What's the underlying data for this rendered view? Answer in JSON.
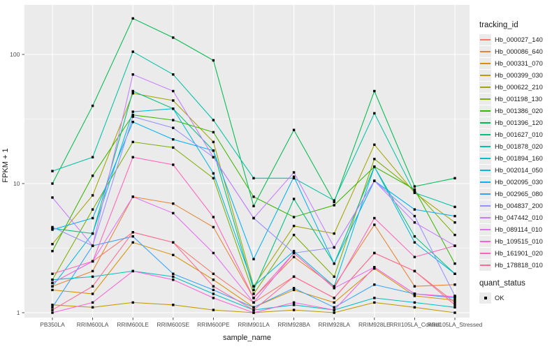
{
  "figure_bg": "#ffffff",
  "panel_bg": "#ebebeb",
  "grid_color": "#ffffff",
  "tick_color": "#333333",
  "axis_text_color": "#4d4d4d",
  "point_color": "#000000",
  "legend": {
    "tracking_title": "tracking_id",
    "quant_title": "quant_status",
    "quant_item": "OK",
    "key_bg": "#ebebeb"
  },
  "chart_data": {
    "type": "line",
    "xlabel": "sample_name",
    "ylabel": "FPKM + 1",
    "yscale": "log10",
    "ylim": [
      1,
      230
    ],
    "yticks": [
      1,
      10,
      100
    ],
    "grid": true,
    "legend_position": "right",
    "point_shape": "filled-square",
    "categories": [
      "PB350LA",
      "RRIM600LA",
      "RRIM600LE",
      "RRIM600SE",
      "RRIM600PE",
      "RRIM901LA",
      "RRIM928BA",
      "RRIM928LA",
      "RRIM928LE",
      "RRII105LA_Control",
      "RRII105LA_Stressed"
    ],
    "series": [
      {
        "name": "Hb_000027_140",
        "color": "#F8766D",
        "values": [
          1.7,
          2.5,
          4.2,
          3.5,
          2.0,
          1.2,
          1.9,
          1.3,
          2.9,
          2.1,
          1.2
        ]
      },
      {
        "name": "Hb_000086_640",
        "color": "#EA8331",
        "values": [
          1.6,
          2.1,
          7.9,
          7.0,
          4.6,
          1.3,
          2.7,
          1.6,
          4.8,
          1.6,
          1.65
        ]
      },
      {
        "name": "Hb_000331_070",
        "color": "#D89000",
        "values": [
          1.5,
          1.4,
          3.5,
          2.8,
          1.8,
          1.1,
          1.5,
          1.2,
          2.2,
          1.35,
          1.25
        ]
      },
      {
        "name": "Hb_000399_030",
        "color": "#C09B00",
        "values": [
          1.15,
          1.1,
          1.2,
          1.15,
          1.05,
          1.0,
          1.05,
          1.0,
          1.2,
          1.1,
          1.0
        ]
      },
      {
        "name": "Hb_000622_210",
        "color": "#A3A500",
        "values": [
          3.4,
          8.1,
          50,
          44,
          21,
          1.6,
          4.7,
          4.1,
          20,
          8.5,
          5.0
        ]
      },
      {
        "name": "Hb_001198_130",
        "color": "#7CAE00",
        "values": [
          1.8,
          6.3,
          21,
          19,
          11,
          1.4,
          4.0,
          1.9,
          15.5,
          8.8,
          4.0
        ]
      },
      {
        "name": "Hb_001386_020",
        "color": "#39B600",
        "values": [
          3.0,
          11.5,
          34,
          31,
          25,
          7.9,
          5.5,
          6.8,
          13.5,
          9.0,
          2.4
        ]
      },
      {
        "name": "Hb_001396_120",
        "color": "#00BB4E",
        "values": [
          10,
          40,
          190,
          135,
          90,
          6.7,
          26,
          7.2,
          52,
          9.5,
          11
        ]
      },
      {
        "name": "Hb_001627_010",
        "color": "#00BF7D",
        "values": [
          4.5,
          4.1,
          52,
          38,
          18,
          1.5,
          7.6,
          2.4,
          13.5,
          3.9,
          2.0
        ]
      },
      {
        "name": "Hb_001878_020",
        "color": "#00C1A3",
        "values": [
          12.5,
          16,
          105,
          70,
          31,
          11,
          11,
          7.4,
          35,
          8.5,
          6.6
        ]
      },
      {
        "name": "Hb_001894_160",
        "color": "#00BFC4",
        "values": [
          1.8,
          1.9,
          2.1,
          1.9,
          1.4,
          1.05,
          1.15,
          1.05,
          1.3,
          1.2,
          1.1
        ]
      },
      {
        "name": "Hb_002014_050",
        "color": "#00BAE0",
        "values": [
          1.6,
          4.1,
          36,
          38,
          12,
          1.6,
          3.0,
          1.6,
          13.5,
          3.5,
          2.0
        ]
      },
      {
        "name": "Hb_002095_030",
        "color": "#00B0F6",
        "values": [
          4.4,
          5.4,
          30,
          22,
          18,
          2.6,
          11.3,
          2.4,
          10.5,
          6.3,
          5.6
        ]
      },
      {
        "name": "Hb_002965_080",
        "color": "#35A2FF",
        "values": [
          1.1,
          3.3,
          3.9,
          2.0,
          1.5,
          1.1,
          1.55,
          1.1,
          1.65,
          1.4,
          1.3
        ]
      },
      {
        "name": "Hb_004837_200",
        "color": "#9590FF",
        "values": [
          4.6,
          3.3,
          33,
          27,
          16,
          5.4,
          2.9,
          3.2,
          10.5,
          5.6,
          1.35
        ]
      },
      {
        "name": "Hb_047442_010",
        "color": "#C77CFF",
        "values": [
          7.8,
          3.3,
          70,
          52,
          16,
          5.4,
          12.2,
          3.2,
          10.5,
          5.0,
          3.3
        ]
      },
      {
        "name": "Hb_089114_010",
        "color": "#E76BF3",
        "values": [
          1.7,
          2.5,
          7.9,
          5.9,
          2.9,
          1.2,
          2.9,
          1.55,
          2.25,
          1.4,
          1.33
        ]
      },
      {
        "name": "Hb_109515_010",
        "color": "#FA62DB",
        "values": [
          1.0,
          1.2,
          2.1,
          1.8,
          1.3,
          1.0,
          1.2,
          1.05,
          2.25,
          1.4,
          1.33
        ]
      },
      {
        "name": "Hb_161901_020",
        "color": "#FF62BC",
        "values": [
          2.0,
          2.5,
          16,
          14,
          5.5,
          1.3,
          2.9,
          1.55,
          5.4,
          2.7,
          3.3
        ]
      },
      {
        "name": "Hb_178818_010",
        "color": "#FF6A98",
        "values": [
          1.05,
          1.6,
          4.2,
          3.5,
          1.6,
          1.05,
          1.9,
          1.3,
          2.9,
          2.1,
          1.15
        ]
      }
    ]
  }
}
